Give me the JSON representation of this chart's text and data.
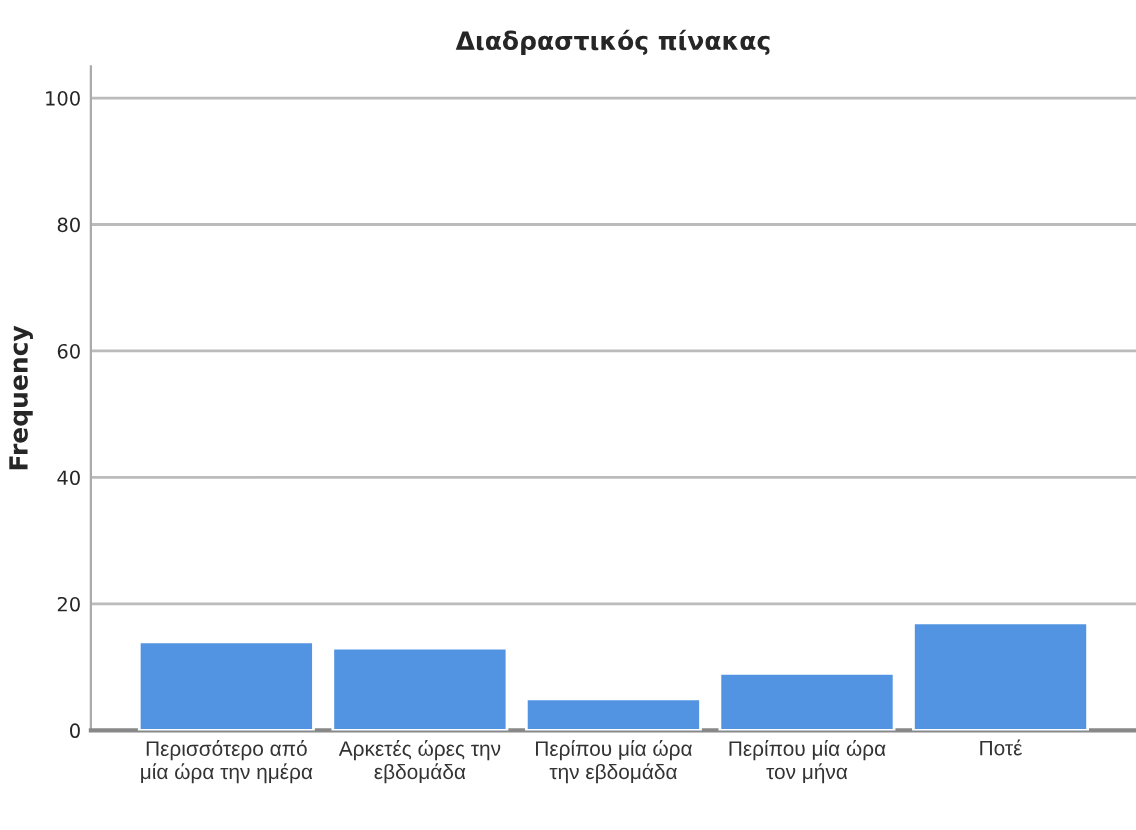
{
  "chart_data": {
    "type": "bar",
    "title": "Διαδραστικός πίνακας",
    "ylabel": "Frequency",
    "categories": [
      "Περισσότερο από\nμία ώρα την ημέρα",
      "Αρκετές ώρες την\nεβδομάδα",
      "Περίπου μία ώρα\nτην εβδομάδα",
      "Περίπου μία ώρα\nτον μήνα",
      "Ποτέ"
    ],
    "values": [
      14,
      13,
      5,
      9,
      17
    ],
    "color": "#5294e2",
    "ylim": [
      0,
      105
    ],
    "yticks": [
      0,
      20,
      40,
      60,
      80,
      100
    ],
    "grid": "y"
  }
}
